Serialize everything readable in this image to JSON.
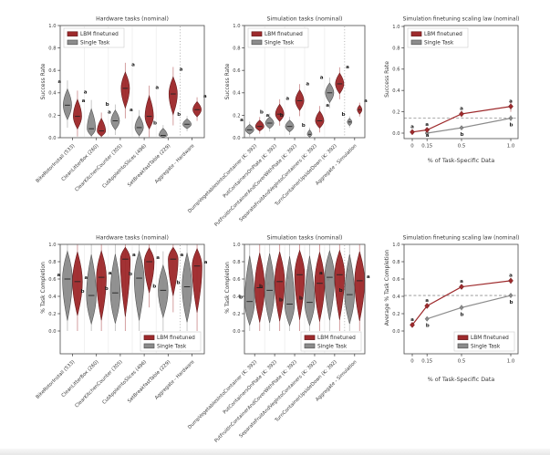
{
  "legend": {
    "lbm": "LBM finetuned",
    "single": "Single Task"
  },
  "colors": {
    "lbm": "#9e2a2c",
    "lbm_edge": "#681b1d",
    "lbm_light": "#cf9496",
    "single": "#8c8c8c",
    "single_edge": "#565656",
    "single_light": "#c2c2c2",
    "frame": "#4a4a4a",
    "text": "#3a3a3a",
    "letter": "#1c1c1c",
    "reference_dash": "#8f8f8f",
    "separator": "#a0a0a0",
    "gridline": "#ebebeb"
  },
  "chart_data": [
    {
      "id": "hardware-success-rate",
      "type": "violin",
      "title": "Hardware tasks (nominal)",
      "ylabel": "Success Rate",
      "ylim": [
        0,
        1
      ],
      "yticks": [
        0.0,
        0.2,
        0.4,
        0.6,
        0.8,
        1.0
      ],
      "categories": [
        "BikeRotorInstall (533)",
        "CleanLitterBox (260)",
        "ClearKitchenCounter (305)",
        "CutAppleIntoSlices (496)",
        "SetBreakfastTable (229)",
        "Aggregate - Hardware"
      ],
      "pairs": [
        {
          "single": {
            "median": 0.29,
            "range": [
              0.13,
              0.47
            ],
            "sig": "a"
          },
          "lbm": {
            "median": 0.19,
            "range": [
              0.05,
              0.38
            ],
            "sig": "a"
          }
        },
        {
          "single": {
            "median": 0.08,
            "range": [
              0.0,
              0.3
            ],
            "sig": "a"
          },
          "lbm": {
            "median": 0.06,
            "range": [
              0.0,
              0.2
            ],
            "sig": "a"
          }
        },
        {
          "single": {
            "median": 0.15,
            "range": [
              0.05,
              0.27
            ],
            "sig": "b"
          },
          "lbm": {
            "median": 0.44,
            "range": [
              0.22,
              0.62
            ],
            "sig": "a"
          }
        },
        {
          "single": {
            "median": 0.09,
            "range": [
              0.0,
              0.22
            ],
            "sig": "a"
          },
          "lbm": {
            "median": 0.19,
            "range": [
              0.05,
              0.42
            ],
            "sig": "a"
          }
        },
        {
          "single": {
            "median": 0.02,
            "range": [
              0.0,
              0.1
            ],
            "sig": "b"
          },
          "lbm": {
            "median": 0.39,
            "range": [
              0.16,
              0.58
            ],
            "sig": "a"
          }
        },
        {
          "single": {
            "median": 0.12,
            "range": [
              0.07,
              0.18
            ],
            "sig": "b"
          },
          "lbm": {
            "median": 0.25,
            "range": [
              0.17,
              0.34
            ],
            "sig": "a"
          }
        }
      ]
    },
    {
      "id": "simulation-success-rate",
      "type": "violin",
      "title": "Simulation tasks (nominal)",
      "ylabel": "Success Rate",
      "ylim": [
        0,
        1
      ],
      "yticks": [
        0.0,
        0.2,
        0.4,
        0.6,
        0.8,
        1.0
      ],
      "categories": [
        "DumpVegetablesIntoContainer (K: 392)",
        "PutContainersOnPlate (K: 392)",
        "PutFruitInContainerAndCoverWithPlate (K: 392)",
        "SeparateFruitAndVegIntoContainers (K: 392)",
        "TurnContainerUpsideDown (K: 392)",
        "Aggregate - Simulation"
      ],
      "pairs": [
        {
          "single": {
            "median": 0.07,
            "range": [
              0.02,
              0.13
            ],
            "sig": "a"
          },
          "lbm": {
            "median": 0.1,
            "range": [
              0.05,
              0.17
            ],
            "sig": "a"
          }
        },
        {
          "single": {
            "median": 0.13,
            "range": [
              0.07,
              0.2
            ],
            "sig": "b"
          },
          "lbm": {
            "median": 0.21,
            "range": [
              0.13,
              0.32
            ],
            "sig": "a"
          }
        },
        {
          "single": {
            "median": 0.1,
            "range": [
              0.04,
              0.17
            ],
            "sig": "b"
          },
          "lbm": {
            "median": 0.33,
            "range": [
              0.22,
              0.45
            ],
            "sig": "a"
          }
        },
        {
          "single": {
            "median": 0.03,
            "range": [
              0.0,
              0.08
            ],
            "sig": "b"
          },
          "lbm": {
            "median": 0.15,
            "range": [
              0.07,
              0.26
            ],
            "sig": "a"
          }
        },
        {
          "single": {
            "median": 0.4,
            "range": [
              0.29,
              0.51
            ],
            "sig": "a"
          },
          "lbm": {
            "median": 0.48,
            "range": [
              0.37,
              0.6
            ],
            "sig": "a"
          }
        },
        {
          "single": {
            "median": 0.14,
            "range": [
              0.1,
              0.18
            ],
            "sig": "b"
          },
          "lbm": {
            "median": 0.25,
            "range": [
              0.2,
              0.3
            ],
            "sig": "a"
          }
        }
      ]
    },
    {
      "id": "scaling-success-rate",
      "type": "line",
      "title": "Simulation finetuning scaling law (nominal)",
      "xlabel": "% of Task-Specific Data",
      "ylabel": "Success Rate",
      "ylim": [
        0,
        1
      ],
      "yticks": [
        0.0,
        0.2,
        0.4,
        0.6,
        0.8,
        1.0
      ],
      "xticks": [
        0,
        0.15,
        0.5,
        1.0
      ],
      "xtick_labels": [
        "0",
        "0.15",
        "0.5",
        "1.0"
      ],
      "reference_line": 0.14,
      "series": [
        {
          "name": "LBM finetuned",
          "key": "lbm",
          "x": [
            0,
            0.15,
            0.5,
            1.0
          ],
          "y": [
            0.01,
            0.03,
            0.18,
            0.25
          ],
          "err": [
            0.01,
            0.02,
            0.03,
            0.05
          ],
          "sig": [
            "a",
            "a",
            "a",
            "a"
          ]
        },
        {
          "name": "Single Task",
          "key": "single",
          "x": [
            0.15,
            0.5,
            1.0
          ],
          "y": [
            0.0,
            0.05,
            0.14
          ],
          "err": [
            0.01,
            0.02,
            0.03
          ],
          "sig": [
            "a",
            "b",
            "b"
          ]
        }
      ]
    },
    {
      "id": "hardware-task-completion",
      "type": "violin",
      "title": "Hardware tasks (nominal)",
      "ylabel": "% Task Completion",
      "ylim": [
        0,
        1
      ],
      "yticks": [
        0.0,
        0.2,
        0.4,
        0.6,
        0.8,
        1.0
      ],
      "categories": [
        "BikeRotorInstall (533)",
        "CleanLitterBox (260)",
        "ClearKitchenCounter (305)",
        "CutAppleIntoSlices (496)",
        "SetBreakfastTable (229)",
        "Aggregate - Hardware"
      ],
      "pairs": [
        {
          "single": {
            "median": 0.6,
            "range": [
              0.0,
              1.0
            ],
            "sig": "a"
          },
          "lbm": {
            "median": 0.57,
            "range": [
              0.08,
              1.0
            ],
            "sig": "a"
          }
        },
        {
          "single": {
            "median": 0.41,
            "range": [
              0.0,
              1.0
            ],
            "sig": "b"
          },
          "lbm": {
            "median": 0.62,
            "range": [
              0.0,
              1.0
            ],
            "sig": "a"
          }
        },
        {
          "single": {
            "median": 0.44,
            "range": [
              0.0,
              1.0
            ],
            "sig": "b"
          },
          "lbm": {
            "median": 0.83,
            "range": [
              0.0,
              1.0
            ],
            "sig": "a"
          }
        },
        {
          "single": {
            "median": 0.61,
            "range": [
              0.0,
              1.0
            ],
            "sig": "b"
          },
          "lbm": {
            "median": 0.8,
            "range": [
              0.35,
              1.0
            ],
            "sig": "a"
          }
        },
        {
          "single": {
            "median": 0.47,
            "range": [
              0.08,
              0.83
            ],
            "sig": "b"
          },
          "lbm": {
            "median": 0.83,
            "range": [
              0.3,
              1.0
            ],
            "sig": "a"
          }
        },
        {
          "single": {
            "median": 0.51,
            "range": [
              0.0,
              1.0
            ],
            "sig": "b"
          },
          "lbm": {
            "median": 0.75,
            "range": [
              0.08,
              1.0
            ],
            "sig": "a"
          }
        }
      ]
    },
    {
      "id": "simulation-task-completion",
      "type": "violin",
      "title": "Simulation tasks (nominal)",
      "ylabel": "% Task Completion",
      "ylim": [
        0,
        1
      ],
      "yticks": [
        0.0,
        0.2,
        0.4,
        0.6,
        0.8,
        1.0
      ],
      "categories": [
        "DumpVegetablesIntoContainer (K: 392)",
        "PutContainersOnPlate (K: 392)",
        "PutFruitInContainerAndCoverWithPlate (K: 392)",
        "SeparateFruitAndVegIntoContainers (K: 392)",
        "TurnContainerUpsideDown (K: 392)",
        "Aggregate - Simulation"
      ],
      "pairs": [
        {
          "single": {
            "median": 0.34,
            "range": [
              0.0,
              1.0
            ],
            "sig": "b"
          },
          "lbm": {
            "median": 0.5,
            "range": [
              0.0,
              1.0
            ],
            "sig": "a"
          }
        },
        {
          "single": {
            "median": 0.47,
            "range": [
              0.0,
              1.0
            ],
            "sig": "b"
          },
          "lbm": {
            "median": 0.57,
            "range": [
              0.0,
              1.0
            ],
            "sig": "a"
          }
        },
        {
          "single": {
            "median": 0.31,
            "range": [
              0.0,
              1.0
            ],
            "sig": "b"
          },
          "lbm": {
            "median": 0.65,
            "range": [
              0.0,
              1.0
            ],
            "sig": "a"
          }
        },
        {
          "single": {
            "median": 0.33,
            "range": [
              0.0,
              1.0
            ],
            "sig": "b"
          },
          "lbm": {
            "median": 0.55,
            "range": [
              0.0,
              1.0
            ],
            "sig": "a"
          }
        },
        {
          "single": {
            "median": 0.62,
            "range": [
              0.0,
              1.0
            ],
            "sig": "a"
          },
          "lbm": {
            "median": 0.65,
            "range": [
              0.0,
              1.0
            ],
            "sig": "a"
          }
        },
        {
          "single": {
            "median": 0.42,
            "range": [
              0.0,
              1.0
            ],
            "sig": "b"
          },
          "lbm": {
            "median": 0.58,
            "range": [
              0.0,
              1.0
            ],
            "sig": "a"
          }
        }
      ]
    },
    {
      "id": "scaling-task-completion",
      "type": "line",
      "title": "Simulation finetuning scaling law (nominal)",
      "xlabel": "% of Task-Specific Data",
      "ylabel": "Average % Task Completion",
      "ylim": [
        0,
        1
      ],
      "yticks": [
        0.0,
        0.2,
        0.4,
        0.6,
        0.8,
        1.0
      ],
      "xticks": [
        0,
        0.15,
        0.5,
        1.0
      ],
      "xtick_labels": [
        "0",
        "0.15",
        "0.5",
        "1.0"
      ],
      "reference_line": 0.41,
      "series": [
        {
          "name": "LBM finetuned",
          "key": "lbm",
          "x": [
            0,
            0.15,
            0.5,
            1.0
          ],
          "y": [
            0.07,
            0.29,
            0.51,
            0.58
          ],
          "err": [
            0.02,
            0.03,
            0.03,
            0.035
          ],
          "sig": [
            "a",
            "a",
            "a",
            "a"
          ]
        },
        {
          "name": "Single Task",
          "key": "single",
          "x": [
            0.15,
            0.5,
            1.0
          ],
          "y": [
            0.14,
            0.27,
            0.41
          ],
          "err": [
            0.03,
            0.035,
            0.03
          ],
          "sig": [
            "b",
            "b",
            "b"
          ]
        }
      ]
    }
  ]
}
